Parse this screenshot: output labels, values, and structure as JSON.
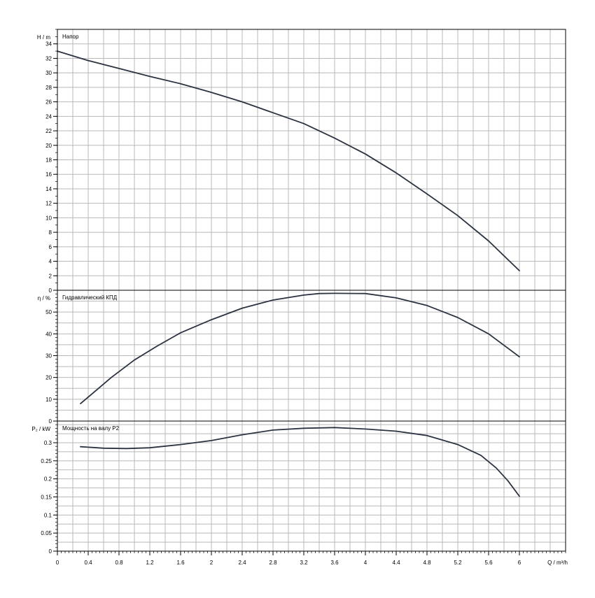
{
  "colors": {
    "curve": "#2b3340",
    "grid": "#b9b9b9",
    "frame": "#000000",
    "background": "#ffffff"
  },
  "xaxis": {
    "label": "Q / m³/h",
    "ticks": [
      0,
      0.4,
      0.8,
      1.2,
      1.6,
      2,
      2.4,
      2.8,
      3.2,
      3.6,
      4,
      4.4,
      4.8,
      5.2,
      5.6,
      6
    ],
    "tick_labels": [
      "0",
      "0.4",
      "0.8",
      "1.2",
      "1.6",
      "2",
      "2.4",
      "2.8",
      "3.2",
      "3.6",
      "4",
      "4.4",
      "4.8",
      "5.2",
      "5.6",
      "6"
    ],
    "range": [
      0,
      6.6
    ],
    "gridlines": [
      0,
      0.2,
      0.4,
      0.6,
      0.8,
      1.0,
      1.2,
      1.4,
      1.6,
      1.8,
      2.0,
      2.2,
      2.4,
      2.6,
      2.8,
      3.0,
      3.2,
      3.4,
      3.6,
      3.8,
      4.0,
      4.2,
      4.4,
      4.6,
      4.8,
      5.0,
      5.2,
      5.4,
      5.6,
      5.8,
      6.0,
      6.2,
      6.4
    ]
  },
  "chart_data": [
    {
      "type": "line",
      "title": "Напор",
      "ylabel": "H / m",
      "ylim": [
        0,
        36
      ],
      "yticks": [
        0,
        2,
        4,
        6,
        8,
        10,
        12,
        14,
        16,
        18,
        20,
        22,
        24,
        26,
        28,
        30,
        32,
        34
      ],
      "grid": true,
      "series": [
        {
          "x": [
            0,
            0.4,
            0.8,
            1.2,
            1.6,
            2.0,
            2.4,
            2.8,
            3.2,
            3.6,
            4.0,
            4.4,
            4.8,
            5.2,
            5.6,
            6.0
          ],
          "y": [
            33.0,
            31.7,
            30.6,
            29.5,
            28.5,
            27.3,
            26.0,
            24.5,
            23.0,
            21.0,
            18.8,
            16.2,
            13.3,
            10.3,
            6.8,
            2.7
          ]
        }
      ]
    },
    {
      "type": "line",
      "title": "Гидравлический КПД",
      "ylabel": "η / %",
      "ylim": [
        0,
        60
      ],
      "yticks": [
        0,
        10,
        20,
        30,
        40,
        50
      ],
      "grid": true,
      "series": [
        {
          "x": [
            0.3,
            0.7,
            1.0,
            1.3,
            1.6,
            2.0,
            2.4,
            2.8,
            3.2,
            3.4,
            3.6,
            4.0,
            4.4,
            4.8,
            5.2,
            5.6,
            6.0
          ],
          "y": [
            8,
            20,
            28,
            34.5,
            40.5,
            46.5,
            51.8,
            55.5,
            57.8,
            58.5,
            58.6,
            58.5,
            56.5,
            53.0,
            47.5,
            40.0,
            29.5
          ]
        }
      ]
    },
    {
      "type": "line",
      "title": "Мощность на валу P2",
      "ylabel": "P₂ / kW",
      "ylim": [
        0,
        0.36
      ],
      "yticks": [
        0,
        0.05,
        0.1,
        0.15,
        0.2,
        0.25,
        0.3
      ],
      "ytick_labels": [
        "0",
        "0.05",
        "0.1",
        "0.15",
        "0.2",
        "0.25",
        "0.3"
      ],
      "grid": true,
      "series": [
        {
          "x": [
            0.3,
            0.6,
            0.9,
            1.2,
            1.6,
            2.0,
            2.4,
            2.8,
            3.2,
            3.6,
            4.0,
            4.4,
            4.8,
            5.2,
            5.5,
            5.7,
            5.85,
            6.0
          ],
          "y": [
            0.289,
            0.285,
            0.284,
            0.286,
            0.295,
            0.306,
            0.322,
            0.335,
            0.34,
            0.342,
            0.338,
            0.332,
            0.32,
            0.295,
            0.265,
            0.23,
            0.195,
            0.152
          ]
        }
      ]
    }
  ]
}
